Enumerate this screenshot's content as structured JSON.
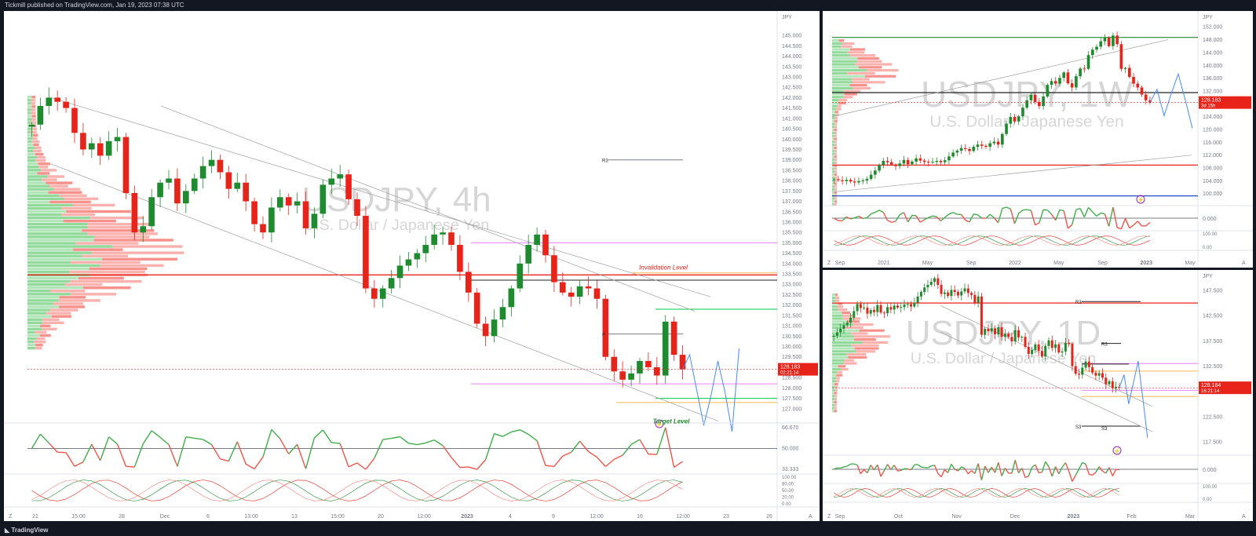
{
  "header": {
    "publisher": "Tickmill published on TradingView.com, Jan 19, 2023 07:38 UTC"
  },
  "footer": {
    "brand": "TradingView"
  },
  "colors": {
    "up": "#1e8c2e",
    "down": "#e8231a",
    "magenta": "#ea80fc",
    "green_level": "#00c853",
    "orange_level": "#ffb74d",
    "projection": "#448aff",
    "watermark": "#d6d6d6"
  },
  "chart_data": [
    {
      "type": "candlestick",
      "panel": "main",
      "symbol_watermark": "USDJPY, 4h",
      "description_watermark": "U.S. Dollar / Japanese Yen",
      "currency": "JPY",
      "y_ticks": [
        "145.000",
        "144.500",
        "144.000",
        "143.500",
        "143.000",
        "142.500",
        "142.000",
        "141.500",
        "141.000",
        "140.500",
        "140.000",
        "139.500",
        "139.000",
        "138.500",
        "138.000",
        "137.500",
        "137.000",
        "136.500",
        "136.000",
        "135.500",
        "135.000",
        "134.500",
        "134.000",
        "133.500",
        "133.000",
        "132.500",
        "132.000",
        "131.500",
        "131.000",
        "130.500",
        "130.000",
        "129.500",
        "129.000",
        "128.500",
        "128.000",
        "127.500",
        "127.000"
      ],
      "ylim": [
        126.5,
        145.8
      ],
      "x_ticks": [
        "21",
        "15:00",
        "28",
        "Dec",
        "6",
        "13:00",
        "13",
        "15:00",
        "20",
        "12:00",
        "2023",
        "4",
        "9",
        "12:00",
        "16",
        "12:00",
        "23",
        "26"
      ],
      "close": [
        140.7,
        141.6,
        142.0,
        141.8,
        141.5,
        140.3,
        139.5,
        139.8,
        139.2,
        139.9,
        140.1,
        137.4,
        135.5,
        135.8,
        137.2,
        137.9,
        138.1,
        136.9,
        137.5,
        138.1,
        138.7,
        139.0,
        138.4,
        137.6,
        137.9,
        137.0,
        135.9,
        135.5,
        136.7,
        137.2,
        136.8,
        137.0,
        135.7,
        136.4,
        137.8,
        138.1,
        138.3,
        137.1,
        136.3,
        132.8,
        132.3,
        132.8,
        133.3,
        133.9,
        134.2,
        134.5,
        134.9,
        135.4,
        135.5,
        134.9,
        133.6,
        132.6,
        131.1,
        130.5,
        131.3,
        131.9,
        132.8,
        134.0,
        134.9,
        135.4,
        134.4,
        133.1,
        132.6,
        132.4,
        132.9,
        132.8,
        132.3,
        129.5,
        128.8,
        128.4,
        128.7,
        129.3,
        129.0,
        128.6,
        131.2,
        129.6,
        128.9
      ],
      "watermark_levels": [
        "Invalidation Level",
        "Target Level",
        "R3",
        "P"
      ],
      "price_label": "128.183",
      "countdown_label": "02:21:14",
      "rsi_ticks": [
        "66.670",
        "50.000",
        "33.333"
      ],
      "stoch_ticks": [
        "100.00",
        "80.00",
        "50.00",
        "20.00",
        "0.00"
      ],
      "projection": [
        128.9,
        129.6,
        127.9,
        126.2,
        127.6,
        129.3,
        127.8,
        125.9,
        129.9
      ],
      "channel_upper": [
        [
          140.9,
          142.0
        ],
        [
          1.0,
          131.4
        ]
      ],
      "channel_lower": [
        [
          140.1,
          138.0
        ],
        [
          1.0,
          125.6
        ]
      ]
    },
    {
      "type": "candlestick",
      "panel": "weekly",
      "symbol_watermark": "USDJPY, 1W",
      "description_watermark": "U.S. Dollar / Japanese Yen",
      "currency": "JPY",
      "y_ticks": [
        "152.000",
        "148.000",
        "144.000",
        "140.000",
        "136.000",
        "132.000",
        "128.000",
        "124.000",
        "120.000",
        "116.000",
        "112.000",
        "108.000",
        "104.000",
        "100.000"
      ],
      "ylim": [
        97.0,
        154.5
      ],
      "x_ticks": [
        "Sep",
        "2021",
        "May",
        "Sep",
        "2022",
        "May",
        "Sep",
        "2023",
        "May"
      ],
      "close": [
        104.5,
        104.2,
        103.9,
        104.3,
        103.8,
        103.5,
        103.9,
        104.1,
        104.6,
        105.9,
        107.2,
        108.9,
        110.2,
        109.8,
        109.1,
        108.6,
        109.4,
        110.5,
        109.2,
        110.0,
        111.0,
        110.3,
        109.9,
        109.7,
        109.9,
        110.2,
        109.8,
        110.4,
        111.6,
        112.8,
        113.4,
        114.2,
        113.9,
        113.3,
        114.6,
        115.3,
        114.9,
        114.6,
        115.7,
        116.2,
        115.3,
        118.6,
        121.8,
        123.9,
        122.5,
        124.1,
        126.8,
        129.1,
        130.8,
        128.6,
        127.3,
        130.3,
        133.9,
        135.1,
        134.3,
        136.1,
        137.8,
        134.4,
        133.1,
        136.6,
        139.0,
        138.9,
        143.2,
        144.9,
        145.8,
        147.5,
        148.6,
        146.0,
        149.3,
        146.6,
        138.9,
        139.2,
        136.4,
        134.3,
        133.1,
        130.9,
        129.1,
        128.4
      ],
      "price_label": "128.183",
      "countdown_label": "3d 15h",
      "rsi_ticks": [
        "0.000"
      ],
      "stoch_ticks": [
        "100.00",
        "0.00"
      ],
      "projection": [
        128.4,
        132.5,
        124.3,
        131.1,
        137.3,
        129.2,
        120.4
      ],
      "levels": [
        {
          "value": 148.7,
          "color": "#1e8c2e"
        },
        {
          "value": 108.9,
          "color": "#e8231a"
        },
        {
          "value": 131.5,
          "color": "#222222"
        },
        {
          "value": 99.3,
          "color": "#1f4fbf"
        }
      ]
    },
    {
      "type": "candlestick",
      "panel": "daily",
      "symbol_watermark": "USDJPY, 1D",
      "description_watermark": "U.S. Dollar / Japanese Yen",
      "currency": "JPY",
      "y_ticks": [
        "147.500",
        "142.500",
        "137.500",
        "132.500",
        "127.500",
        "122.500",
        "117.500"
      ],
      "ylim": [
        115.0,
        150.0
      ],
      "x_ticks": [
        "Sep",
        "Oct",
        "Nov",
        "Dec",
        "2023",
        "Feb",
        "Mar"
      ],
      "close": [
        138.5,
        139.2,
        139.9,
        140.6,
        141.1,
        142.1,
        143.4,
        144.8,
        144.0,
        144.1,
        142.9,
        143.6,
        143.2,
        144.6,
        143.1,
        143.0,
        144.2,
        143.7,
        144.5,
        144.1,
        144.2,
        144.7,
        144.8,
        144.3,
        145.1,
        146.3,
        147.2,
        148.1,
        148.6,
        149.2,
        149.9,
        148.6,
        146.8,
        147.1,
        146.4,
        147.6,
        147.2,
        146.5,
        147.3,
        147.9,
        147.0,
        146.6,
        145.1,
        146.3,
        138.7,
        139.9,
        139.4,
        140.0,
        138.8,
        140.2,
        138.3,
        138.9,
        138.3,
        137.4,
        139.6,
        138.2,
        138.3,
        136.3,
        134.9,
        135.7,
        136.8,
        135.5,
        134.4,
        136.5,
        137.6,
        136.1,
        136.8,
        135.2,
        135.4,
        137.1,
        136.9,
        132.5,
        131.0,
        130.8,
        132.2,
        133.4,
        132.3,
        131.2,
        130.6,
        131.1,
        130.2,
        128.9,
        129.5,
        128.1,
        128.4,
        128.2
      ],
      "price_label": "128.184",
      "countdown_label": "16:21:14",
      "pivot_labels": [
        "R3",
        "R3",
        "S3",
        "S3"
      ],
      "rsi_ticks": [
        "0.000"
      ],
      "stoch_ticks": [
        "100.00",
        "0.00"
      ],
      "projection": [
        128.2,
        130.8,
        125.0,
        129.2,
        133.5,
        126.1,
        118.3
      ]
    }
  ],
  "toolbar": {
    "zoom_badge": "Z",
    "auto_badge": "A"
  }
}
